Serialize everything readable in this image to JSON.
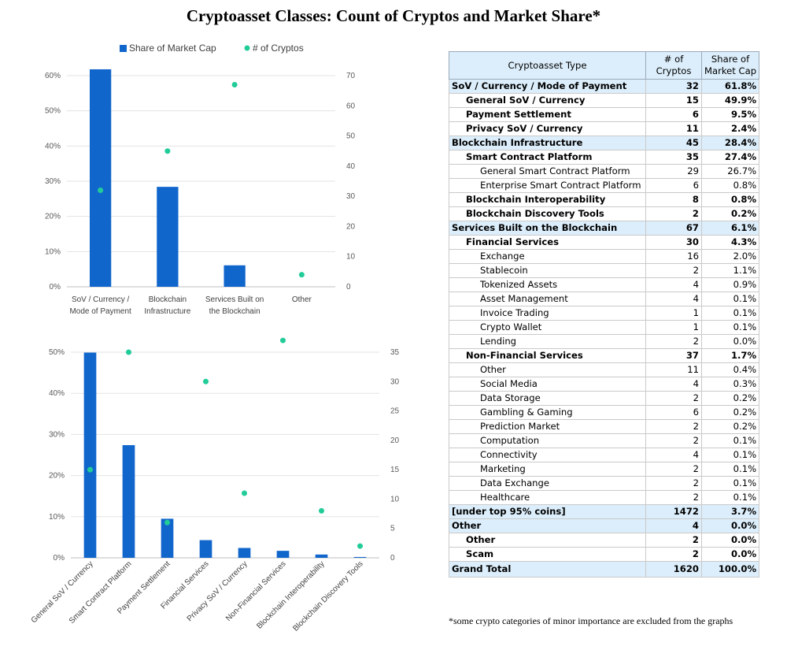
{
  "title": "Cryptoasset Classes: Count of Cryptos and Market Share*",
  "chart_data": [
    {
      "type": "bar",
      "title": "",
      "legend": [
        "Share of Market Cap",
        "# of Cryptos"
      ],
      "legend_position": "top",
      "categories": [
        [
          "SoV / Currency /",
          "Mode of Payment"
        ],
        [
          "Blockchain",
          "Infrastructure"
        ],
        [
          "Services Built on",
          "the Blockchain"
        ],
        [
          "Other"
        ]
      ],
      "series": [
        {
          "name": "Share of Market Cap",
          "type": "bar",
          "axis": "left",
          "values": [
            61.8,
            28.4,
            6.1,
            0.0
          ]
        },
        {
          "name": "# of Cryptos",
          "type": "scatter",
          "axis": "right",
          "values": [
            32,
            45,
            67,
            4
          ]
        }
      ],
      "ylim": [
        0,
        60
      ],
      "yticks": [
        "0%",
        "10%",
        "20%",
        "30%",
        "40%",
        "50%",
        "60%"
      ],
      "y2lim": [
        0,
        70
      ],
      "y2ticks": [
        "0",
        "10",
        "20",
        "30",
        "40",
        "50",
        "60",
        "70"
      ],
      "bar_color": "#1166cc",
      "dot_color": "#22cc99"
    },
    {
      "type": "bar",
      "title": "",
      "categories": [
        "General SoV / Currency",
        "Smart Contract Platform",
        "Payment Settlement",
        "Financial Services",
        "Privacy SoV / Currency",
        "Non-Financial Services",
        "Blockchain Interoperability",
        "Blockchain Discovery Tools"
      ],
      "series": [
        {
          "name": "Share of Market Cap",
          "type": "bar",
          "axis": "left",
          "values": [
            49.9,
            27.4,
            9.5,
            4.3,
            2.4,
            1.7,
            0.8,
            0.2
          ]
        },
        {
          "name": "# of Cryptos",
          "type": "scatter",
          "axis": "right",
          "values": [
            15,
            35,
            6,
            30,
            11,
            37,
            8,
            2
          ]
        }
      ],
      "ylim": [
        0,
        50
      ],
      "yticks": [
        "0%",
        "10%",
        "20%",
        "30%",
        "40%",
        "50%"
      ],
      "y2lim": [
        0,
        35
      ],
      "y2ticks": [
        "0",
        "5",
        "10",
        "15",
        "20",
        "25",
        "30",
        "35"
      ],
      "bar_color": "#1166cc",
      "dot_color": "#22cc99"
    },
    {
      "type": "table",
      "header": [
        [
          "Cryptoasset Type"
        ],
        [
          "# of",
          "Cryptos"
        ],
        [
          "Share of",
          "Market Cap"
        ]
      ],
      "rows": [
        {
          "level": 0,
          "label": "SoV / Currency / Mode of Payment",
          "count": "32",
          "share": "61.8%"
        },
        {
          "level": 1,
          "label": "General SoV / Currency",
          "count": "15",
          "share": "49.9%"
        },
        {
          "level": 1,
          "label": "Payment Settlement",
          "count": "6",
          "share": "9.5%"
        },
        {
          "level": 1,
          "label": "Privacy SoV / Currency",
          "count": "11",
          "share": "2.4%"
        },
        {
          "level": 0,
          "label": "Blockchain Infrastructure",
          "count": "45",
          "share": "28.4%"
        },
        {
          "level": 1,
          "label": "Smart Contract Platform",
          "count": "35",
          "share": "27.4%"
        },
        {
          "level": 2,
          "label": "General Smart Contract Platform",
          "count": "29",
          "share": "26.7%"
        },
        {
          "level": 2,
          "label": "Enterprise Smart Contract Platform",
          "count": "6",
          "share": "0.8%"
        },
        {
          "level": 1,
          "label": "Blockchain Interoperability",
          "count": "8",
          "share": "0.8%"
        },
        {
          "level": 1,
          "label": "Blockchain Discovery Tools",
          "count": "2",
          "share": "0.2%"
        },
        {
          "level": 0,
          "label": "Services Built on the Blockchain",
          "count": "67",
          "share": "6.1%"
        },
        {
          "level": 1,
          "label": "Financial Services",
          "count": "30",
          "share": "4.3%"
        },
        {
          "level": 2,
          "label": "Exchange",
          "count": "16",
          "share": "2.0%"
        },
        {
          "level": 2,
          "label": "Stablecoin",
          "count": "2",
          "share": "1.1%"
        },
        {
          "level": 2,
          "label": "Tokenized Assets",
          "count": "4",
          "share": "0.9%"
        },
        {
          "level": 2,
          "label": "Asset Management",
          "count": "4",
          "share": "0.1%"
        },
        {
          "level": 2,
          "label": "Invoice Trading",
          "count": "1",
          "share": "0.1%"
        },
        {
          "level": 2,
          "label": "Crypto Wallet",
          "count": "1",
          "share": "0.1%"
        },
        {
          "level": 2,
          "label": "Lending",
          "count": "2",
          "share": "0.0%"
        },
        {
          "level": 1,
          "label": "Non-Financial Services",
          "count": "37",
          "share": "1.7%"
        },
        {
          "level": 2,
          "label": "Other",
          "count": "11",
          "share": "0.4%"
        },
        {
          "level": 2,
          "label": "Social Media",
          "count": "4",
          "share": "0.3%"
        },
        {
          "level": 2,
          "label": "Data Storage",
          "count": "2",
          "share": "0.2%"
        },
        {
          "level": 2,
          "label": "Gambling & Gaming",
          "count": "6",
          "share": "0.2%"
        },
        {
          "level": 2,
          "label": "Prediction Market",
          "count": "2",
          "share": "0.2%"
        },
        {
          "level": 2,
          "label": "Computation",
          "count": "2",
          "share": "0.1%"
        },
        {
          "level": 2,
          "label": "Connectivity",
          "count": "4",
          "share": "0.1%"
        },
        {
          "level": 2,
          "label": "Marketing",
          "count": "2",
          "share": "0.1%"
        },
        {
          "level": 2,
          "label": "Data Exchange",
          "count": "2",
          "share": "0.1%"
        },
        {
          "level": 2,
          "label": "Healthcare",
          "count": "2",
          "share": "0.1%"
        },
        {
          "level": 0,
          "label": "[under top 95% coins]",
          "count": "1472",
          "share": "3.7%"
        },
        {
          "level": 0,
          "label": "Other",
          "count": "4",
          "share": "0.0%"
        },
        {
          "level": 1,
          "label": "Other",
          "count": "2",
          "share": "0.0%"
        },
        {
          "level": 1,
          "label": "Scam",
          "count": "2",
          "share": "0.0%"
        },
        {
          "level": "total",
          "label": "Grand Total",
          "count": "1620",
          "share": "100.0%"
        }
      ]
    }
  ],
  "footnote": "*some crypto categories of minor importance are excluded from the graphs"
}
